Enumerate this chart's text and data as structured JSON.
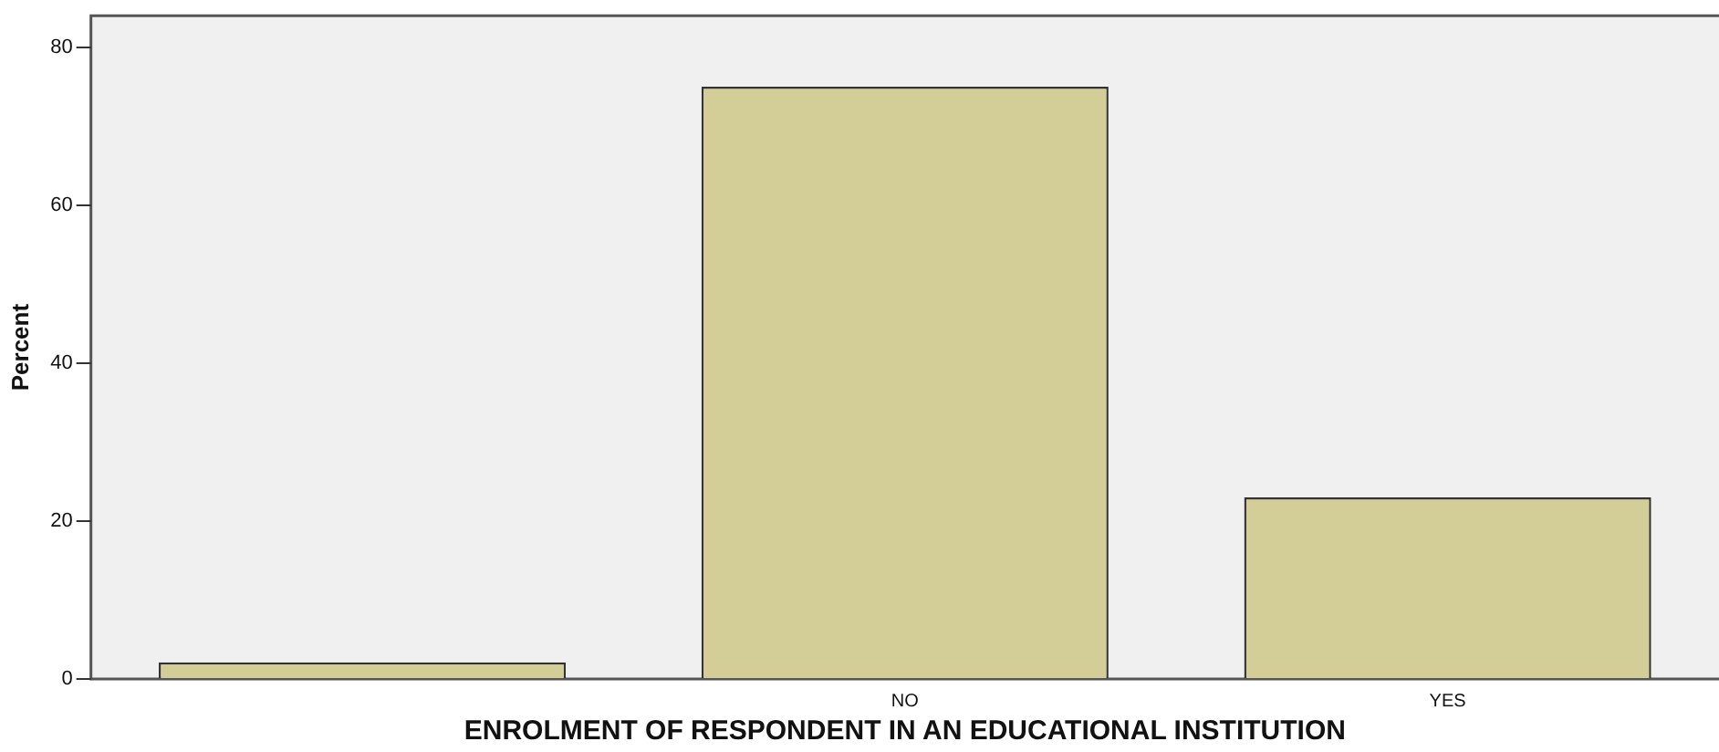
{
  "chart_data": {
    "type": "bar",
    "xlabel": "ENROLMENT OF RESPONDENT IN AN EDUCATIONAL INSTITUTION",
    "ylabel": "Percent",
    "categories": [
      null,
      "NO",
      "YES"
    ],
    "values": [
      2.1,
      75.0,
      23.0
    ],
    "color": "#d3ce97",
    "ylim": [
      0,
      84
    ],
    "yticks": [
      0,
      20,
      40,
      60,
      80
    ],
    "grid": false,
    "legend": false
  }
}
